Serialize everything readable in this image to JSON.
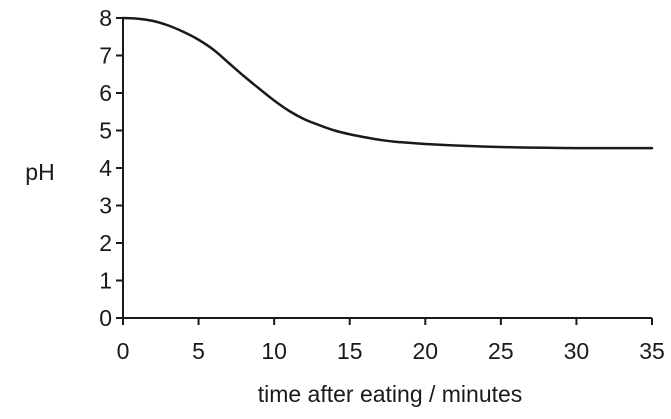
{
  "chart_data": {
    "type": "line",
    "title": "",
    "xlabel": "time after eating / minutes",
    "ylabel": "pH",
    "xlim": [
      0,
      35
    ],
    "ylim": [
      0,
      8
    ],
    "x_ticks": [
      "0",
      "5",
      "10",
      "15",
      "20",
      "25",
      "30",
      "35"
    ],
    "y_ticks": [
      "0",
      "1",
      "2",
      "3",
      "4",
      "5",
      "6",
      "7",
      "8"
    ],
    "grid": false,
    "legend": "none",
    "line_color": "#1a1a1a",
    "series": [
      {
        "x": [
          0,
          1,
          2,
          3,
          4,
          5,
          6,
          7,
          8,
          9,
          10,
          11,
          12,
          13,
          14,
          15,
          16,
          17,
          18,
          19,
          20,
          22,
          24,
          26,
          28,
          30,
          32,
          35
        ],
        "values": [
          8.0,
          7.98,
          7.92,
          7.8,
          7.63,
          7.42,
          7.15,
          6.8,
          6.45,
          6.12,
          5.8,
          5.52,
          5.3,
          5.14,
          5.0,
          4.9,
          4.82,
          4.75,
          4.7,
          4.67,
          4.64,
          4.6,
          4.57,
          4.55,
          4.54,
          4.53,
          4.53,
          4.53
        ]
      }
    ]
  }
}
